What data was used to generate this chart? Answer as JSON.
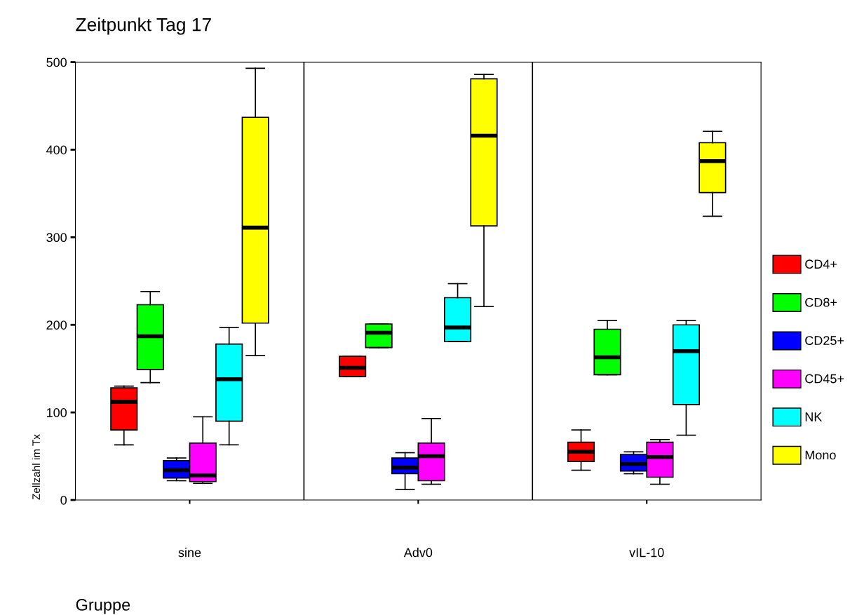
{
  "chart_data": {
    "type": "box",
    "title": "Zeitpunkt Tag 17",
    "xlabel": "Gruppe",
    "ylabel": "Zellzahl im Tx",
    "categories": [
      "sine",
      "Adv0",
      "vIL-10"
    ],
    "ylim": [
      0,
      500
    ],
    "yticks": [
      0,
      100,
      200,
      300,
      400,
      500
    ],
    "grid": false,
    "legend": "right",
    "series": [
      {
        "name": "CD4+",
        "color": "#ff0000",
        "boxes": [
          {
            "low": 63,
            "q1": 80,
            "median": 112,
            "q3": 128,
            "high": 130
          },
          {
            "low": 141,
            "q1": 141,
            "median": 151,
            "q3": 164,
            "high": 164
          },
          {
            "low": 34,
            "q1": 44,
            "median": 55,
            "q3": 66,
            "high": 80
          }
        ]
      },
      {
        "name": "CD8+",
        "color": "#00ff00",
        "boxes": [
          {
            "low": 134,
            "q1": 149,
            "median": 187,
            "q3": 223,
            "high": 238
          },
          {
            "low": 174,
            "q1": 174,
            "median": 191,
            "q3": 201,
            "high": 201
          },
          {
            "low": 143,
            "q1": 143,
            "median": 163,
            "q3": 195,
            "high": 205
          }
        ]
      },
      {
        "name": "CD25+",
        "color": "#0000ff",
        "boxes": [
          {
            "low": 22,
            "q1": 25,
            "median": 34,
            "q3": 45,
            "high": 48
          },
          {
            "low": 12,
            "q1": 30,
            "median": 37,
            "q3": 48,
            "high": 54
          },
          {
            "low": 30,
            "q1": 33,
            "median": 41,
            "q3": 52,
            "high": 55
          }
        ]
      },
      {
        "name": "CD45+",
        "color": "#ff00ff",
        "boxes": [
          {
            "low": 19,
            "q1": 21,
            "median": 28,
            "q3": 65,
            "high": 95
          },
          {
            "low": 18,
            "q1": 22,
            "median": 50,
            "q3": 65,
            "high": 93
          },
          {
            "low": 18,
            "q1": 26,
            "median": 49,
            "q3": 66,
            "high": 69
          }
        ]
      },
      {
        "name": "NK",
        "color": "#00ffff",
        "boxes": [
          {
            "low": 63,
            "q1": 90,
            "median": 138,
            "q3": 178,
            "high": 197
          },
          {
            "low": 181,
            "q1": 181,
            "median": 197,
            "q3": 231,
            "high": 247
          },
          {
            "low": 74,
            "q1": 109,
            "median": 170,
            "q3": 200,
            "high": 205
          }
        ]
      },
      {
        "name": "Mono",
        "color": "#ffff00",
        "boxes": [
          {
            "low": 165,
            "q1": 202,
            "median": 311,
            "q3": 437,
            "high": 493
          },
          {
            "low": 221,
            "q1": 313,
            "median": 416,
            "q3": 481,
            "high": 486
          },
          {
            "low": 324,
            "q1": 351,
            "median": 387,
            "q3": 408,
            "high": 421
          }
        ]
      }
    ]
  }
}
